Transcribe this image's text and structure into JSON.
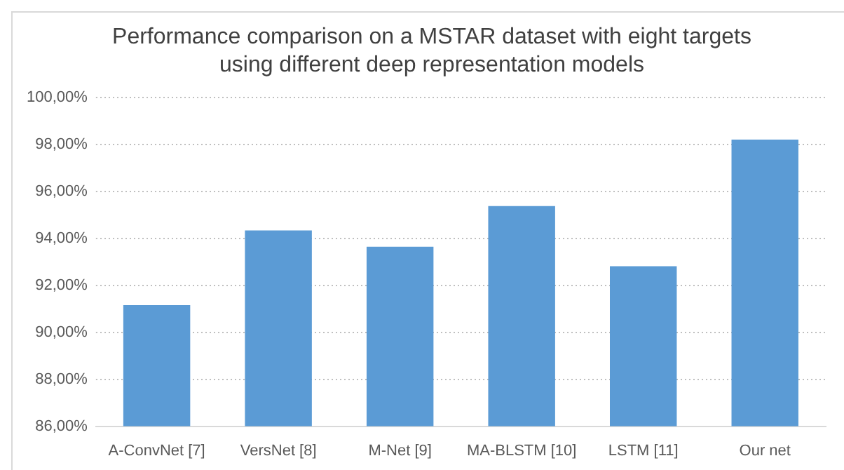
{
  "chart_data": {
    "type": "bar",
    "title": "Performance comparison on a MSTAR dataset with eight targets using different deep representation models",
    "categories": [
      "A-ConvNet [7]",
      "VersNet [8]",
      "M-Net [9]",
      "MA-BLSTM [10]",
      "LSTM [11]",
      "Our net"
    ],
    "values": [
      91.16,
      94.34,
      93.65,
      95.38,
      92.82,
      98.21
    ],
    "color": "#5b9bd5",
    "ylim": [
      86,
      100
    ],
    "yticks": [
      {
        "value": 86,
        "label": "86,00%"
      },
      {
        "value": 88,
        "label": "88,00%"
      },
      {
        "value": 90,
        "label": "90,00%"
      },
      {
        "value": 92,
        "label": "92,00%"
      },
      {
        "value": 94,
        "label": "94,00%"
      },
      {
        "value": 96,
        "label": "96,00%"
      },
      {
        "value": 98,
        "label": "98,00%"
      },
      {
        "value": 100,
        "label": "100,00%"
      }
    ],
    "grid": "y",
    "legend": false
  }
}
